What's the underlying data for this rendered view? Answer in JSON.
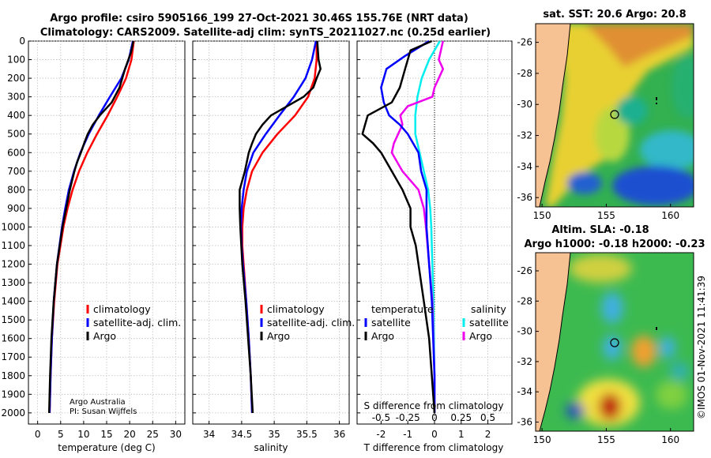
{
  "title": {
    "line1": "Argo profile: csiro 5905166_199 27-Oct-2021 30.46S 155.76E (NRT data)",
    "line2": "Climatology: CARS2009. Satellite-adj clim: synTS_20211027.nc (0.25d earlier)"
  },
  "depth_ticks": [
    "0",
    "100",
    "200",
    "300",
    "400",
    "500",
    "600",
    "700",
    "800",
    "900",
    "1000",
    "1100",
    "1200",
    "1300",
    "1400",
    "1500",
    "1600",
    "1700",
    "1800",
    "1900",
    "2000"
  ],
  "colors": {
    "climatology": "#ff0000",
    "satellite_adj": "#0000ff",
    "argo": "#000000",
    "satellite_s": "#00eeee",
    "argo_s": "#ee00ee"
  },
  "chart_data": [
    {
      "type": "line",
      "title": "temperature profile",
      "xlabel": "temperature (deg C)",
      "ylabel": "depth",
      "xlim": [
        -2,
        32
      ],
      "ylim": [
        2060,
        0
      ],
      "xticks": [
        "0",
        "5",
        "10",
        "15",
        "20",
        "25",
        "30"
      ],
      "legend": [
        "climatology",
        "satellite-adj. clim.",
        "Argo"
      ],
      "credit": [
        "Argo Australia",
        "PI: Susan Wijffels"
      ],
      "series": [
        {
          "name": "climatology",
          "depth": [
            0,
            100,
            200,
            300,
            400,
            500,
            600,
            700,
            800,
            900,
            1000,
            1200,
            1400,
            1600,
            1800,
            2000
          ],
          "values": [
            20.9,
            20.4,
            19.2,
            17.3,
            15.2,
            12.9,
            10.8,
            9.0,
            7.6,
            6.5,
            5.6,
            4.3,
            3.6,
            3.1,
            2.8,
            2.6
          ]
        },
        {
          "name": "satellite-adj. clim.",
          "depth": [
            0,
            100,
            200,
            300,
            400,
            500,
            600,
            700,
            800,
            900,
            1000,
            1200,
            1400,
            1600,
            1800,
            2000
          ],
          "values": [
            20.7,
            19.8,
            18.2,
            15.7,
            13.3,
            11.1,
            9.3,
            7.9,
            6.8,
            6.0,
            5.3,
            4.2,
            3.5,
            3.1,
            2.8,
            2.6
          ]
        },
        {
          "name": "Argo",
          "depth": [
            0,
            60,
            150,
            250,
            330,
            400,
            450,
            500,
            550,
            600,
            650,
            700,
            800,
            900,
            1000,
            1200,
            1400,
            1600,
            1800,
            2000
          ],
          "values": [
            20.8,
            20.3,
            19.0,
            17.8,
            16.1,
            13.5,
            12.0,
            10.9,
            10.1,
            9.4,
            8.6,
            8.0,
            7.0,
            6.2,
            5.4,
            4.2,
            3.5,
            3.0,
            2.7,
            2.5
          ]
        }
      ]
    },
    {
      "type": "line",
      "title": "salinity profile",
      "xlabel": "salinity",
      "ylabel": "depth",
      "xlim": [
        33.75,
        36.15
      ],
      "ylim": [
        2060,
        0
      ],
      "xticks": [
        "34",
        "34.5",
        "35",
        "35.5",
        "36"
      ],
      "legend": [
        "climatology",
        "satellite-adj. clim.",
        "Argo"
      ],
      "series": [
        {
          "name": "climatology",
          "depth": [
            0,
            100,
            200,
            300,
            400,
            500,
            600,
            700,
            800,
            900,
            1000,
            1100,
            1200,
            1400,
            1600,
            1800,
            2000
          ],
          "values": [
            35.65,
            35.65,
            35.62,
            35.52,
            35.32,
            35.05,
            34.82,
            34.66,
            34.58,
            34.53,
            34.51,
            34.51,
            34.53,
            34.57,
            34.61,
            34.64,
            34.66
          ]
        },
        {
          "name": "satellite-adj. clim.",
          "depth": [
            0,
            100,
            200,
            300,
            400,
            500,
            600,
            700,
            800,
            900,
            1000,
            1100,
            1200,
            1400,
            1600,
            1800,
            2000
          ],
          "values": [
            35.64,
            35.58,
            35.48,
            35.3,
            35.08,
            34.87,
            34.68,
            34.58,
            34.53,
            34.5,
            34.49,
            34.5,
            34.52,
            34.57,
            34.61,
            34.64,
            34.66
          ]
        },
        {
          "name": "Argo",
          "depth": [
            0,
            50,
            100,
            150,
            200,
            250,
            300,
            350,
            400,
            450,
            500,
            550,
            600,
            700,
            800,
            900,
            1000,
            1200,
            1400,
            1600,
            1800,
            2000
          ],
          "values": [
            35.66,
            35.67,
            35.68,
            35.71,
            35.65,
            35.6,
            35.45,
            35.2,
            34.95,
            34.82,
            34.72,
            34.66,
            34.61,
            34.55,
            34.47,
            34.47,
            34.48,
            34.51,
            34.56,
            34.6,
            34.64,
            34.67
          ]
        }
      ]
    },
    {
      "type": "line",
      "title": "difference from climatology",
      "xlabel": "T difference from climatology",
      "xlabel_top": "S difference from climatology",
      "ylabel": "depth",
      "xlim": [
        -2.9,
        2.9
      ],
      "ylim": [
        2060,
        0
      ],
      "xticks": [
        "-2",
        "-1",
        "0",
        "1",
        "2"
      ],
      "xticks_s": [
        "-0.5",
        "-0.25",
        "0",
        "0.25",
        "0.5"
      ],
      "legend_t_title": "temperature",
      "legend_s_title": "salinity",
      "legend_t": [
        "satellite",
        "Argo"
      ],
      "legend_s": [
        "satellite",
        "Argo"
      ],
      "series": [
        {
          "name": "T satellite",
          "depth": [
            0,
            80,
            150,
            250,
            330,
            400,
            450,
            500,
            600,
            700,
            800,
            900,
            1000,
            1200,
            1400,
            1600,
            1800,
            2000
          ],
          "values": [
            -0.2,
            -1.1,
            -1.8,
            -2.0,
            -1.9,
            -1.7,
            -1.3,
            -1.0,
            -0.6,
            -0.5,
            -0.3,
            -0.3,
            -0.3,
            -0.2,
            -0.1,
            -0.05,
            0,
            0
          ]
        },
        {
          "name": "T Argo",
          "depth": [
            0,
            50,
            150,
            250,
            330,
            400,
            450,
            500,
            550,
            600,
            700,
            800,
            900,
            1000,
            1100,
            1200,
            1400,
            1600,
            1800,
            2000
          ],
          "values": [
            -0.1,
            -0.9,
            -1.1,
            -1.3,
            -1.6,
            -2.5,
            -2.6,
            -2.7,
            -2.3,
            -2.0,
            -1.6,
            -1.2,
            -0.9,
            -0.9,
            -0.7,
            -0.6,
            -0.4,
            -0.2,
            -0.1,
            0
          ]
        },
        {
          "name": "S satellite",
          "depth": [
            0,
            100,
            200,
            300,
            400,
            500,
            600,
            700,
            800,
            900,
            1000,
            1200,
            1400,
            1600,
            1800,
            2000
          ],
          "values": [
            0.05,
            -0.05,
            -0.12,
            -0.16,
            -0.18,
            -0.18,
            -0.14,
            -0.1,
            -0.06,
            -0.04,
            -0.03,
            -0.02,
            -0.01,
            -0.005,
            0,
            0
          ]
        },
        {
          "name": "S Argo",
          "depth": [
            0,
            50,
            100,
            150,
            200,
            250,
            300,
            350,
            400,
            450,
            500,
            550,
            600,
            700,
            800,
            900,
            1000,
            1200,
            1400,
            1600,
            1800,
            2000
          ],
          "values": [
            0.08,
            0.06,
            0.04,
            0.08,
            0.04,
            0.0,
            -0.02,
            -0.25,
            -0.32,
            -0.3,
            -0.34,
            -0.38,
            -0.4,
            -0.3,
            -0.15,
            -0.1,
            -0.08,
            -0.05,
            -0.02,
            -0.01,
            0,
            0
          ]
        }
      ]
    },
    {
      "type": "heatmap",
      "title": "sat. SST: 20.6 Argo: 20.8",
      "xticks": [
        "150",
        "155",
        "160"
      ],
      "yticks": [
        "-26",
        "-28",
        "-30",
        "-32",
        "-34",
        "-36"
      ],
      "xlim": [
        149.5,
        161.8
      ],
      "ylim": [
        -36.6,
        -24.8
      ],
      "float_position": [
        155.76,
        -30.46
      ]
    },
    {
      "type": "heatmap",
      "title": "Altim. SLA: -0.18",
      "subtitle": "Argo h1000: -0.18 h2000: -0.23",
      "xticks": [
        "150",
        "155",
        "160"
      ],
      "yticks": [
        "-26",
        "-28",
        "-30",
        "-32",
        "-34",
        "-36"
      ],
      "xlim": [
        149.5,
        161.8
      ],
      "ylim": [
        -36.6,
        -24.8
      ],
      "float_position": [
        155.76,
        -30.46
      ]
    }
  ],
  "timestamp": "©IMOS 01-Nov-2021 11:41:39"
}
